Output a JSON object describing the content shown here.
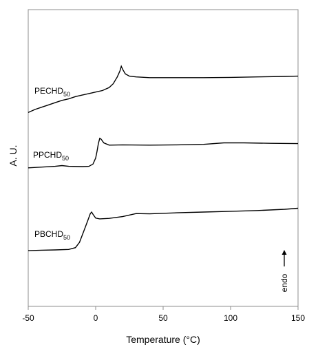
{
  "chart_data": {
    "type": "line",
    "xlabel": "Temperature (°C)",
    "ylabel": "A. U.",
    "xlim": [
      -50,
      150
    ],
    "x_ticks": [
      "-50",
      "0",
      "50",
      "100",
      "150"
    ],
    "annotation": "endo",
    "series": [
      {
        "name": "PECHD",
        "name_sub": "50",
        "points": [
          [
            -50,
            -2.2
          ],
          [
            -45,
            -2.0
          ],
          [
            -40,
            -1.85
          ],
          [
            -35,
            -1.7
          ],
          [
            -30,
            -1.55
          ],
          [
            -25,
            -1.4
          ],
          [
            -20,
            -1.3
          ],
          [
            -15,
            -1.15
          ],
          [
            -10,
            -1.05
          ],
          [
            -5,
            -0.95
          ],
          [
            0,
            -0.85
          ],
          [
            5,
            -0.75
          ],
          [
            10,
            -0.55
          ],
          [
            13,
            -0.3
          ],
          [
            16,
            0.15
          ],
          [
            18,
            0.55
          ],
          [
            19,
            0.85
          ],
          [
            20,
            0.65
          ],
          [
            22,
            0.35
          ],
          [
            25,
            0.2
          ],
          [
            30,
            0.15
          ],
          [
            40,
            0.1
          ],
          [
            60,
            0.1
          ],
          [
            80,
            0.1
          ],
          [
            100,
            0.12
          ],
          [
            120,
            0.15
          ],
          [
            140,
            0.18
          ],
          [
            150,
            0.2
          ]
        ]
      },
      {
        "name": "PPCHD",
        "name_sub": "50",
        "points": [
          [
            -50,
            -1.4
          ],
          [
            -40,
            -1.35
          ],
          [
            -30,
            -1.3
          ],
          [
            -25,
            -1.25
          ],
          [
            -20,
            -1.3
          ],
          [
            -10,
            -1.32
          ],
          [
            -5,
            -1.3
          ],
          [
            -2,
            -1.15
          ],
          [
            0,
            -0.75
          ],
          [
            1,
            -0.3
          ],
          [
            2,
            0.2
          ],
          [
            3,
            0.55
          ],
          [
            4,
            0.5
          ],
          [
            6,
            0.25
          ],
          [
            10,
            0.1
          ],
          [
            20,
            0.12
          ],
          [
            40,
            0.1
          ],
          [
            60,
            0.12
          ],
          [
            80,
            0.15
          ],
          [
            95,
            0.25
          ],
          [
            110,
            0.25
          ],
          [
            130,
            0.22
          ],
          [
            150,
            0.2
          ]
        ]
      },
      {
        "name": "PBCHD",
        "name_sub": "50",
        "points": [
          [
            -50,
            -1.55
          ],
          [
            -40,
            -1.52
          ],
          [
            -30,
            -1.5
          ],
          [
            -20,
            -1.47
          ],
          [
            -15,
            -1.35
          ],
          [
            -12,
            -1.0
          ],
          [
            -9,
            -0.3
          ],
          [
            -6,
            0.4
          ],
          [
            -4,
            0.9
          ],
          [
            -3,
            1.0
          ],
          [
            -2,
            0.85
          ],
          [
            0,
            0.6
          ],
          [
            3,
            0.55
          ],
          [
            10,
            0.58
          ],
          [
            20,
            0.7
          ],
          [
            30,
            0.9
          ],
          [
            40,
            0.88
          ],
          [
            60,
            0.95
          ],
          [
            80,
            1.0
          ],
          [
            100,
            1.05
          ],
          [
            120,
            1.1
          ],
          [
            140,
            1.18
          ],
          [
            150,
            1.25
          ]
        ]
      }
    ]
  }
}
